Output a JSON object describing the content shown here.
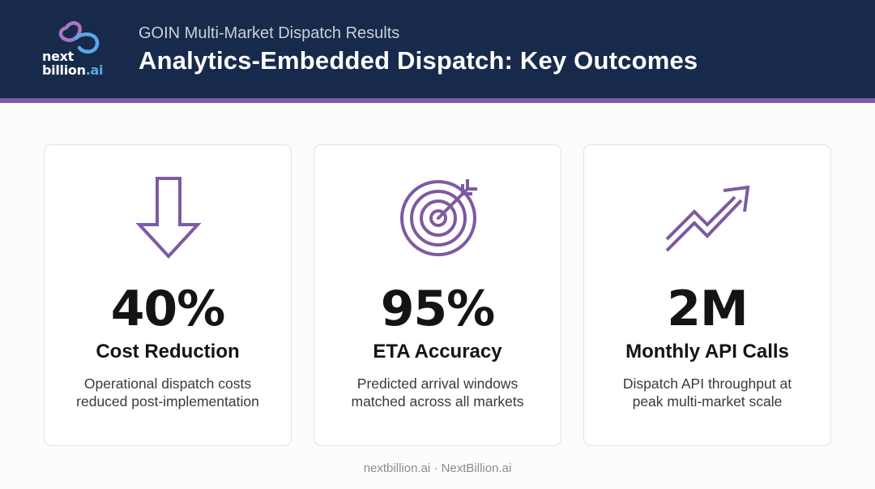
{
  "header": {
    "logo_line1": "next",
    "logo_line2": "billion",
    "logo_line2_suffix": ".ai",
    "subtitle": "GOIN Multi-Market Dispatch Results",
    "title": "Analytics-Embedded Dispatch: Key Outcomes"
  },
  "cards": [
    {
      "icon": "down-arrow-icon",
      "value": "40%",
      "label": "Cost Reduction",
      "desc_line1": "Operational dispatch costs",
      "desc_line2": "reduced post-implementation"
    },
    {
      "icon": "target-icon",
      "value": "95%",
      "label": "ETA Accuracy",
      "desc_line1": "Predicted arrival windows",
      "desc_line2": "matched across all markets"
    },
    {
      "icon": "trend-up-icon",
      "value": "2M",
      "label": "Monthly API Calls",
      "desc_line1": "Dispatch API throughput at",
      "desc_line2": "peak multi-market scale"
    }
  ],
  "footer": {
    "text": "nextbillion.ai · NextBillion.ai"
  },
  "colors": {
    "header_bg": "#172a4c",
    "accent_purple": "#7d5aa0",
    "logo_blue": "#5aa9e6",
    "text_dark": "#141414"
  }
}
